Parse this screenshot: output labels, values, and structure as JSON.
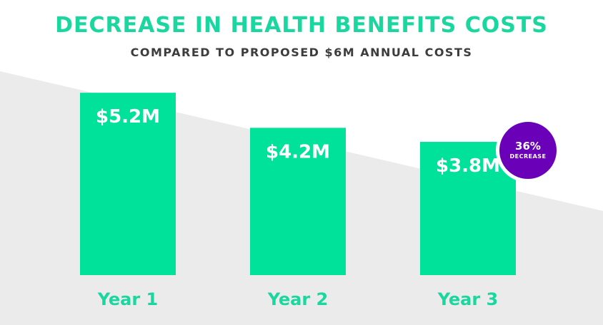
{
  "header": {
    "title": "DECREASE IN HEALTH BENEFITS COSTS",
    "subtitle": "COMPARED TO PROPOSED $6M ANNUAL COSTS"
  },
  "badge": {
    "value": "36%",
    "label": "DECREASE"
  },
  "colors": {
    "bar": "#00e19a",
    "title": "#19d79e",
    "subtitle": "#3d3d3d",
    "badge": "#6a00b8",
    "background_band": "#ecebec"
  },
  "chart_data": {
    "type": "bar",
    "title": "DECREASE IN HEALTH BENEFITS COSTS",
    "subtitle": "COMPARED TO PROPOSED $6M ANNUAL COSTS",
    "categories": [
      "Year 1",
      "Year 2",
      "Year 3"
    ],
    "values": [
      5.2,
      4.2,
      3.8
    ],
    "data_labels": [
      "$5.2M",
      "$4.2M",
      "$3.8M"
    ],
    "unit": "$M",
    "xlabel": "",
    "ylabel": "",
    "ylim": [
      0,
      6
    ],
    "grid": false,
    "legend": "none"
  }
}
